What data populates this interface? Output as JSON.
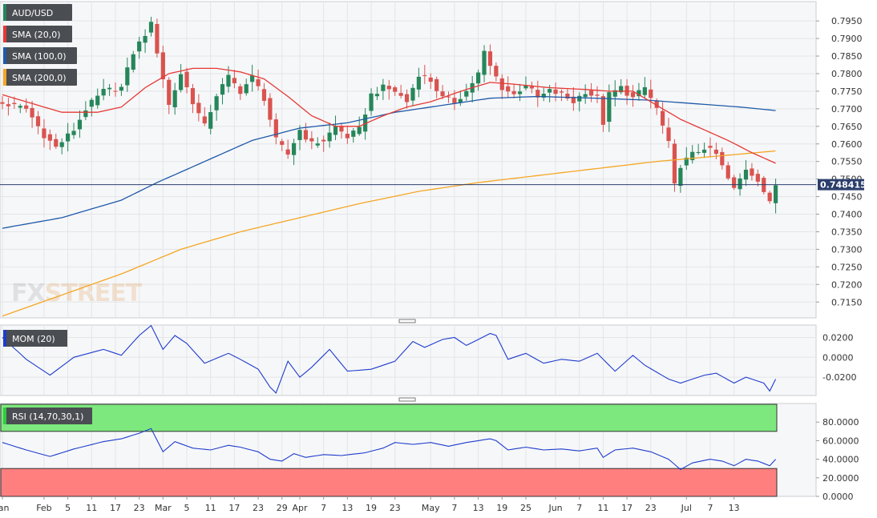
{
  "chart_data": [
    {
      "type": "candlestick",
      "symbol": "AUD/USD",
      "ylim": [
        0.7105,
        0.8005
      ],
      "yticks": [
        "0.7950",
        "0.7900",
        "0.7850",
        "0.7800",
        "0.7750",
        "0.7700",
        "0.7650",
        "0.7600",
        "0.7550",
        "0.7500",
        "0.7450",
        "0.7400",
        "0.7350",
        "0.7300",
        "0.7250",
        "0.7200",
        "0.7150"
      ],
      "last_price": "0.748415",
      "last_price_value": 0.74841,
      "watermark": {
        "fx": "FX",
        "street": "STREET"
      },
      "legend": [
        {
          "label": "AUD/USD",
          "color": "#26865a"
        },
        {
          "label": "SMA (20,0)",
          "color": "#e53935"
        },
        {
          "label": "SMA (100,0)",
          "color": "#1e5aa8"
        },
        {
          "label": "SMA (200,0)",
          "color": "#f5a623"
        }
      ],
      "colors": {
        "up": "#26865a",
        "down": "#d9534f",
        "sma20": "#e53935",
        "sma100": "#1e5aa8",
        "sma200": "#f5a623",
        "last_line": "#2c3e6b"
      },
      "sessions": 131,
      "anchors": [
        {
          "i": 0,
          "p": 0.7715
        },
        {
          "i": 4,
          "p": 0.77
        },
        {
          "i": 7,
          "p": 0.7625
        },
        {
          "i": 9,
          "p": 0.759
        },
        {
          "i": 12,
          "p": 0.764
        },
        {
          "i": 14,
          "p": 0.77
        },
        {
          "i": 17,
          "p": 0.775
        },
        {
          "i": 20,
          "p": 0.776
        },
        {
          "i": 22,
          "p": 0.786
        },
        {
          "i": 25,
          "p": 0.794
        },
        {
          "i": 28,
          "p": 0.771
        },
        {
          "i": 30,
          "p": 0.78
        },
        {
          "i": 32,
          "p": 0.772
        },
        {
          "i": 34,
          "p": 0.765
        },
        {
          "i": 36,
          "p": 0.774
        },
        {
          "i": 38,
          "p": 0.779
        },
        {
          "i": 40,
          "p": 0.775
        },
        {
          "i": 42,
          "p": 0.779
        },
        {
          "i": 44,
          "p": 0.773
        },
        {
          "i": 46,
          "p": 0.761
        },
        {
          "i": 48,
          "p": 0.757
        },
        {
          "i": 50,
          "p": 0.764
        },
        {
          "i": 52,
          "p": 0.76
        },
        {
          "i": 54,
          "p": 0.761
        },
        {
          "i": 56,
          "p": 0.765
        },
        {
          "i": 58,
          "p": 0.762
        },
        {
          "i": 60,
          "p": 0.764
        },
        {
          "i": 62,
          "p": 0.774
        },
        {
          "i": 64,
          "p": 0.776
        },
        {
          "i": 66,
          "p": 0.775
        },
        {
          "i": 68,
          "p": 0.772
        },
        {
          "i": 70,
          "p": 0.78
        },
        {
          "i": 72,
          "p": 0.778
        },
        {
          "i": 74,
          "p": 0.773
        },
        {
          "i": 76,
          "p": 0.772
        },
        {
          "i": 78,
          "p": 0.775
        },
        {
          "i": 80,
          "p": 0.78
        },
        {
          "i": 81,
          "p": 0.786
        },
        {
          "i": 82,
          "p": 0.782
        },
        {
          "i": 84,
          "p": 0.776
        },
        {
          "i": 86,
          "p": 0.774
        },
        {
          "i": 88,
          "p": 0.777
        },
        {
          "i": 90,
          "p": 0.773
        },
        {
          "i": 92,
          "p": 0.775
        },
        {
          "i": 94,
          "p": 0.774
        },
        {
          "i": 96,
          "p": 0.772
        },
        {
          "i": 98,
          "p": 0.775
        },
        {
          "i": 100,
          "p": 0.773
        },
        {
          "i": 101,
          "p": 0.766
        },
        {
          "i": 102,
          "p": 0.774
        },
        {
          "i": 104,
          "p": 0.776
        },
        {
          "i": 106,
          "p": 0.773
        },
        {
          "i": 108,
          "p": 0.776
        },
        {
          "i": 110,
          "p": 0.77
        },
        {
          "i": 112,
          "p": 0.76
        },
        {
          "i": 113,
          "p": 0.748
        },
        {
          "i": 114,
          "p": 0.754
        },
        {
          "i": 116,
          "p": 0.757
        },
        {
          "i": 118,
          "p": 0.759
        },
        {
          "i": 120,
          "p": 0.757
        },
        {
          "i": 122,
          "p": 0.75
        },
        {
          "i": 123,
          "p": 0.747
        },
        {
          "i": 125,
          "p": 0.753
        },
        {
          "i": 127,
          "p": 0.75
        },
        {
          "i": 129,
          "p": 0.743
        },
        {
          "i": 130,
          "p": 0.7484
        }
      ],
      "sma20_anchors": [
        {
          "i": 0,
          "p": 0.774
        },
        {
          "i": 6,
          "p": 0.771
        },
        {
          "i": 10,
          "p": 0.769
        },
        {
          "i": 16,
          "p": 0.769
        },
        {
          "i": 20,
          "p": 0.7705
        },
        {
          "i": 24,
          "p": 0.776
        },
        {
          "i": 28,
          "p": 0.78
        },
        {
          "i": 32,
          "p": 0.7815
        },
        {
          "i": 36,
          "p": 0.7815
        },
        {
          "i": 40,
          "p": 0.7805
        },
        {
          "i": 44,
          "p": 0.7785
        },
        {
          "i": 48,
          "p": 0.7735
        },
        {
          "i": 52,
          "p": 0.768
        },
        {
          "i": 56,
          "p": 0.765
        },
        {
          "i": 60,
          "p": 0.765
        },
        {
          "i": 64,
          "p": 0.768
        },
        {
          "i": 68,
          "p": 0.7705
        },
        {
          "i": 72,
          "p": 0.772
        },
        {
          "i": 78,
          "p": 0.7755
        },
        {
          "i": 82,
          "p": 0.7775
        },
        {
          "i": 86,
          "p": 0.777
        },
        {
          "i": 92,
          "p": 0.776
        },
        {
          "i": 98,
          "p": 0.7755
        },
        {
          "i": 102,
          "p": 0.775
        },
        {
          "i": 106,
          "p": 0.775
        },
        {
          "i": 110,
          "p": 0.771
        },
        {
          "i": 114,
          "p": 0.767
        },
        {
          "i": 118,
          "p": 0.764
        },
        {
          "i": 122,
          "p": 0.761
        },
        {
          "i": 126,
          "p": 0.7575
        },
        {
          "i": 130,
          "p": 0.7545
        }
      ],
      "sma100_anchors": [
        {
          "i": 0,
          "p": 0.736
        },
        {
          "i": 10,
          "p": 0.739
        },
        {
          "i": 20,
          "p": 0.744
        },
        {
          "i": 26,
          "p": 0.749
        },
        {
          "i": 34,
          "p": 0.755
        },
        {
          "i": 42,
          "p": 0.761
        },
        {
          "i": 50,
          "p": 0.7645
        },
        {
          "i": 58,
          "p": 0.766
        },
        {
          "i": 66,
          "p": 0.769
        },
        {
          "i": 74,
          "p": 0.771
        },
        {
          "i": 82,
          "p": 0.773
        },
        {
          "i": 90,
          "p": 0.7735
        },
        {
          "i": 100,
          "p": 0.773
        },
        {
          "i": 108,
          "p": 0.7725
        },
        {
          "i": 116,
          "p": 0.7715
        },
        {
          "i": 124,
          "p": 0.7705
        },
        {
          "i": 130,
          "p": 0.7695
        }
      ],
      "sma200_anchors": [
        {
          "i": 0,
          "p": 0.711
        },
        {
          "i": 10,
          "p": 0.717
        },
        {
          "i": 20,
          "p": 0.723
        },
        {
          "i": 30,
          "p": 0.73
        },
        {
          "i": 40,
          "p": 0.735
        },
        {
          "i": 50,
          "p": 0.739
        },
        {
          "i": 60,
          "p": 0.743
        },
        {
          "i": 70,
          "p": 0.7465
        },
        {
          "i": 80,
          "p": 0.749
        },
        {
          "i": 90,
          "p": 0.751
        },
        {
          "i": 100,
          "p": 0.753
        },
        {
          "i": 110,
          "p": 0.755
        },
        {
          "i": 120,
          "p": 0.7565
        },
        {
          "i": 130,
          "p": 0.758
        }
      ]
    },
    {
      "type": "line",
      "label": "MOM (20)",
      "color": "#1e3ccc",
      "ylim": [
        -0.0385,
        0.0325
      ],
      "yticks": [
        "0.0200",
        "0.0000",
        "-0.0200"
      ],
      "anchors": [
        {
          "i": 0,
          "p": 0.02
        },
        {
          "i": 4,
          "p": -0.002
        },
        {
          "i": 8,
          "p": -0.018
        },
        {
          "i": 12,
          "p": 0.0
        },
        {
          "i": 17,
          "p": 0.008
        },
        {
          "i": 20,
          "p": 0.002
        },
        {
          "i": 23,
          "p": 0.022
        },
        {
          "i": 25,
          "p": 0.032
        },
        {
          "i": 27,
          "p": 0.008
        },
        {
          "i": 29,
          "p": 0.022
        },
        {
          "i": 31,
          "p": 0.014
        },
        {
          "i": 34,
          "p": -0.006
        },
        {
          "i": 38,
          "p": 0.004
        },
        {
          "i": 40,
          "p": -0.002
        },
        {
          "i": 43,
          "p": -0.012
        },
        {
          "i": 45,
          "p": -0.03
        },
        {
          "i": 46,
          "p": -0.036
        },
        {
          "i": 48,
          "p": -0.004
        },
        {
          "i": 50,
          "p": -0.02
        },
        {
          "i": 52,
          "p": -0.01
        },
        {
          "i": 55,
          "p": 0.008
        },
        {
          "i": 58,
          "p": -0.014
        },
        {
          "i": 62,
          "p": -0.012
        },
        {
          "i": 66,
          "p": -0.004
        },
        {
          "i": 69,
          "p": 0.016
        },
        {
          "i": 71,
          "p": 0.01
        },
        {
          "i": 74,
          "p": 0.018
        },
        {
          "i": 76,
          "p": 0.02
        },
        {
          "i": 78,
          "p": 0.012
        },
        {
          "i": 80,
          "p": 0.018
        },
        {
          "i": 82,
          "p": 0.024
        },
        {
          "i": 83,
          "p": 0.022
        },
        {
          "i": 85,
          "p": -0.002
        },
        {
          "i": 88,
          "p": 0.004
        },
        {
          "i": 91,
          "p": -0.006
        },
        {
          "i": 94,
          "p": -0.002
        },
        {
          "i": 97,
          "p": -0.004
        },
        {
          "i": 100,
          "p": 0.004
        },
        {
          "i": 103,
          "p": -0.014
        },
        {
          "i": 106,
          "p": 0.002
        },
        {
          "i": 108,
          "p": -0.008
        },
        {
          "i": 112,
          "p": -0.022
        },
        {
          "i": 114,
          "p": -0.026
        },
        {
          "i": 118,
          "p": -0.018
        },
        {
          "i": 120,
          "p": -0.016
        },
        {
          "i": 123,
          "p": -0.026
        },
        {
          "i": 125,
          "p": -0.02
        },
        {
          "i": 128,
          "p": -0.026
        },
        {
          "i": 129,
          "p": -0.034
        },
        {
          "i": 130,
          "p": -0.022
        }
      ]
    },
    {
      "type": "line",
      "label": "RSI (14,70,30,1)",
      "color": "#1e3ccc",
      "ylim": [
        0,
        100
      ],
      "overbought": 70,
      "oversold": 30,
      "zone_colors": {
        "overbought": "#7de87d",
        "oversold": "#ff7f7f"
      },
      "yticks": [
        "80.0000",
        "60.0000",
        "40.0000",
        "20.0000",
        "0.0000"
      ],
      "anchors": [
        {
          "i": 0,
          "p": 58
        },
        {
          "i": 4,
          "p": 50
        },
        {
          "i": 8,
          "p": 43
        },
        {
          "i": 12,
          "p": 51
        },
        {
          "i": 17,
          "p": 59
        },
        {
          "i": 20,
          "p": 62
        },
        {
          "i": 23,
          "p": 68
        },
        {
          "i": 25,
          "p": 73
        },
        {
          "i": 27,
          "p": 48
        },
        {
          "i": 29,
          "p": 59
        },
        {
          "i": 32,
          "p": 52
        },
        {
          "i": 35,
          "p": 50
        },
        {
          "i": 38,
          "p": 55
        },
        {
          "i": 40,
          "p": 53
        },
        {
          "i": 43,
          "p": 48
        },
        {
          "i": 45,
          "p": 40
        },
        {
          "i": 47,
          "p": 38
        },
        {
          "i": 49,
          "p": 46
        },
        {
          "i": 51,
          "p": 42
        },
        {
          "i": 54,
          "p": 45
        },
        {
          "i": 57,
          "p": 44
        },
        {
          "i": 61,
          "p": 47
        },
        {
          "i": 64,
          "p": 52
        },
        {
          "i": 66,
          "p": 58
        },
        {
          "i": 69,
          "p": 56
        },
        {
          "i": 72,
          "p": 58
        },
        {
          "i": 75,
          "p": 54
        },
        {
          "i": 78,
          "p": 58
        },
        {
          "i": 82,
          "p": 62
        },
        {
          "i": 83,
          "p": 60
        },
        {
          "i": 85,
          "p": 50
        },
        {
          "i": 88,
          "p": 53
        },
        {
          "i": 91,
          "p": 50
        },
        {
          "i": 94,
          "p": 51
        },
        {
          "i": 97,
          "p": 49
        },
        {
          "i": 100,
          "p": 52
        },
        {
          "i": 101,
          "p": 42
        },
        {
          "i": 103,
          "p": 50
        },
        {
          "i": 106,
          "p": 52
        },
        {
          "i": 109,
          "p": 48
        },
        {
          "i": 112,
          "p": 40
        },
        {
          "i": 114,
          "p": 29
        },
        {
          "i": 116,
          "p": 36
        },
        {
          "i": 119,
          "p": 40
        },
        {
          "i": 121,
          "p": 38
        },
        {
          "i": 123,
          "p": 33
        },
        {
          "i": 125,
          "p": 40
        },
        {
          "i": 127,
          "p": 38
        },
        {
          "i": 129,
          "p": 33
        },
        {
          "i": 130,
          "p": 40
        }
      ]
    }
  ],
  "x_axis": {
    "labels": [
      {
        "text": "Jan",
        "i": 0
      },
      {
        "text": "Feb",
        "i": 7
      },
      {
        "text": "5",
        "i": 11
      },
      {
        "text": "11",
        "i": 15
      },
      {
        "text": "17",
        "i": 19
      },
      {
        "text": "23",
        "i": 23
      },
      {
        "text": "Mar",
        "i": 27
      },
      {
        "text": "5",
        "i": 31
      },
      {
        "text": "11",
        "i": 35
      },
      {
        "text": "17",
        "i": 39
      },
      {
        "text": "23",
        "i": 43
      },
      {
        "text": "29",
        "i": 47
      },
      {
        "text": "Apr",
        "i": 50
      },
      {
        "text": "7",
        "i": 54
      },
      {
        "text": "13",
        "i": 58
      },
      {
        "text": "19",
        "i": 62
      },
      {
        "text": "23",
        "i": 66
      },
      {
        "text": "May",
        "i": 72
      },
      {
        "text": "7",
        "i": 76
      },
      {
        "text": "13",
        "i": 80
      },
      {
        "text": "19",
        "i": 84
      },
      {
        "text": "25",
        "i": 88
      },
      {
        "text": "Jun",
        "i": 93
      },
      {
        "text": "7",
        "i": 97
      },
      {
        "text": "11",
        "i": 101
      },
      {
        "text": "17",
        "i": 105
      },
      {
        "text": "23",
        "i": 109
      },
      {
        "text": "Jul",
        "i": 115
      },
      {
        "text": "7",
        "i": 119
      },
      {
        "text": "13",
        "i": 123
      }
    ],
    "label_spacing_sessions": 4
  }
}
